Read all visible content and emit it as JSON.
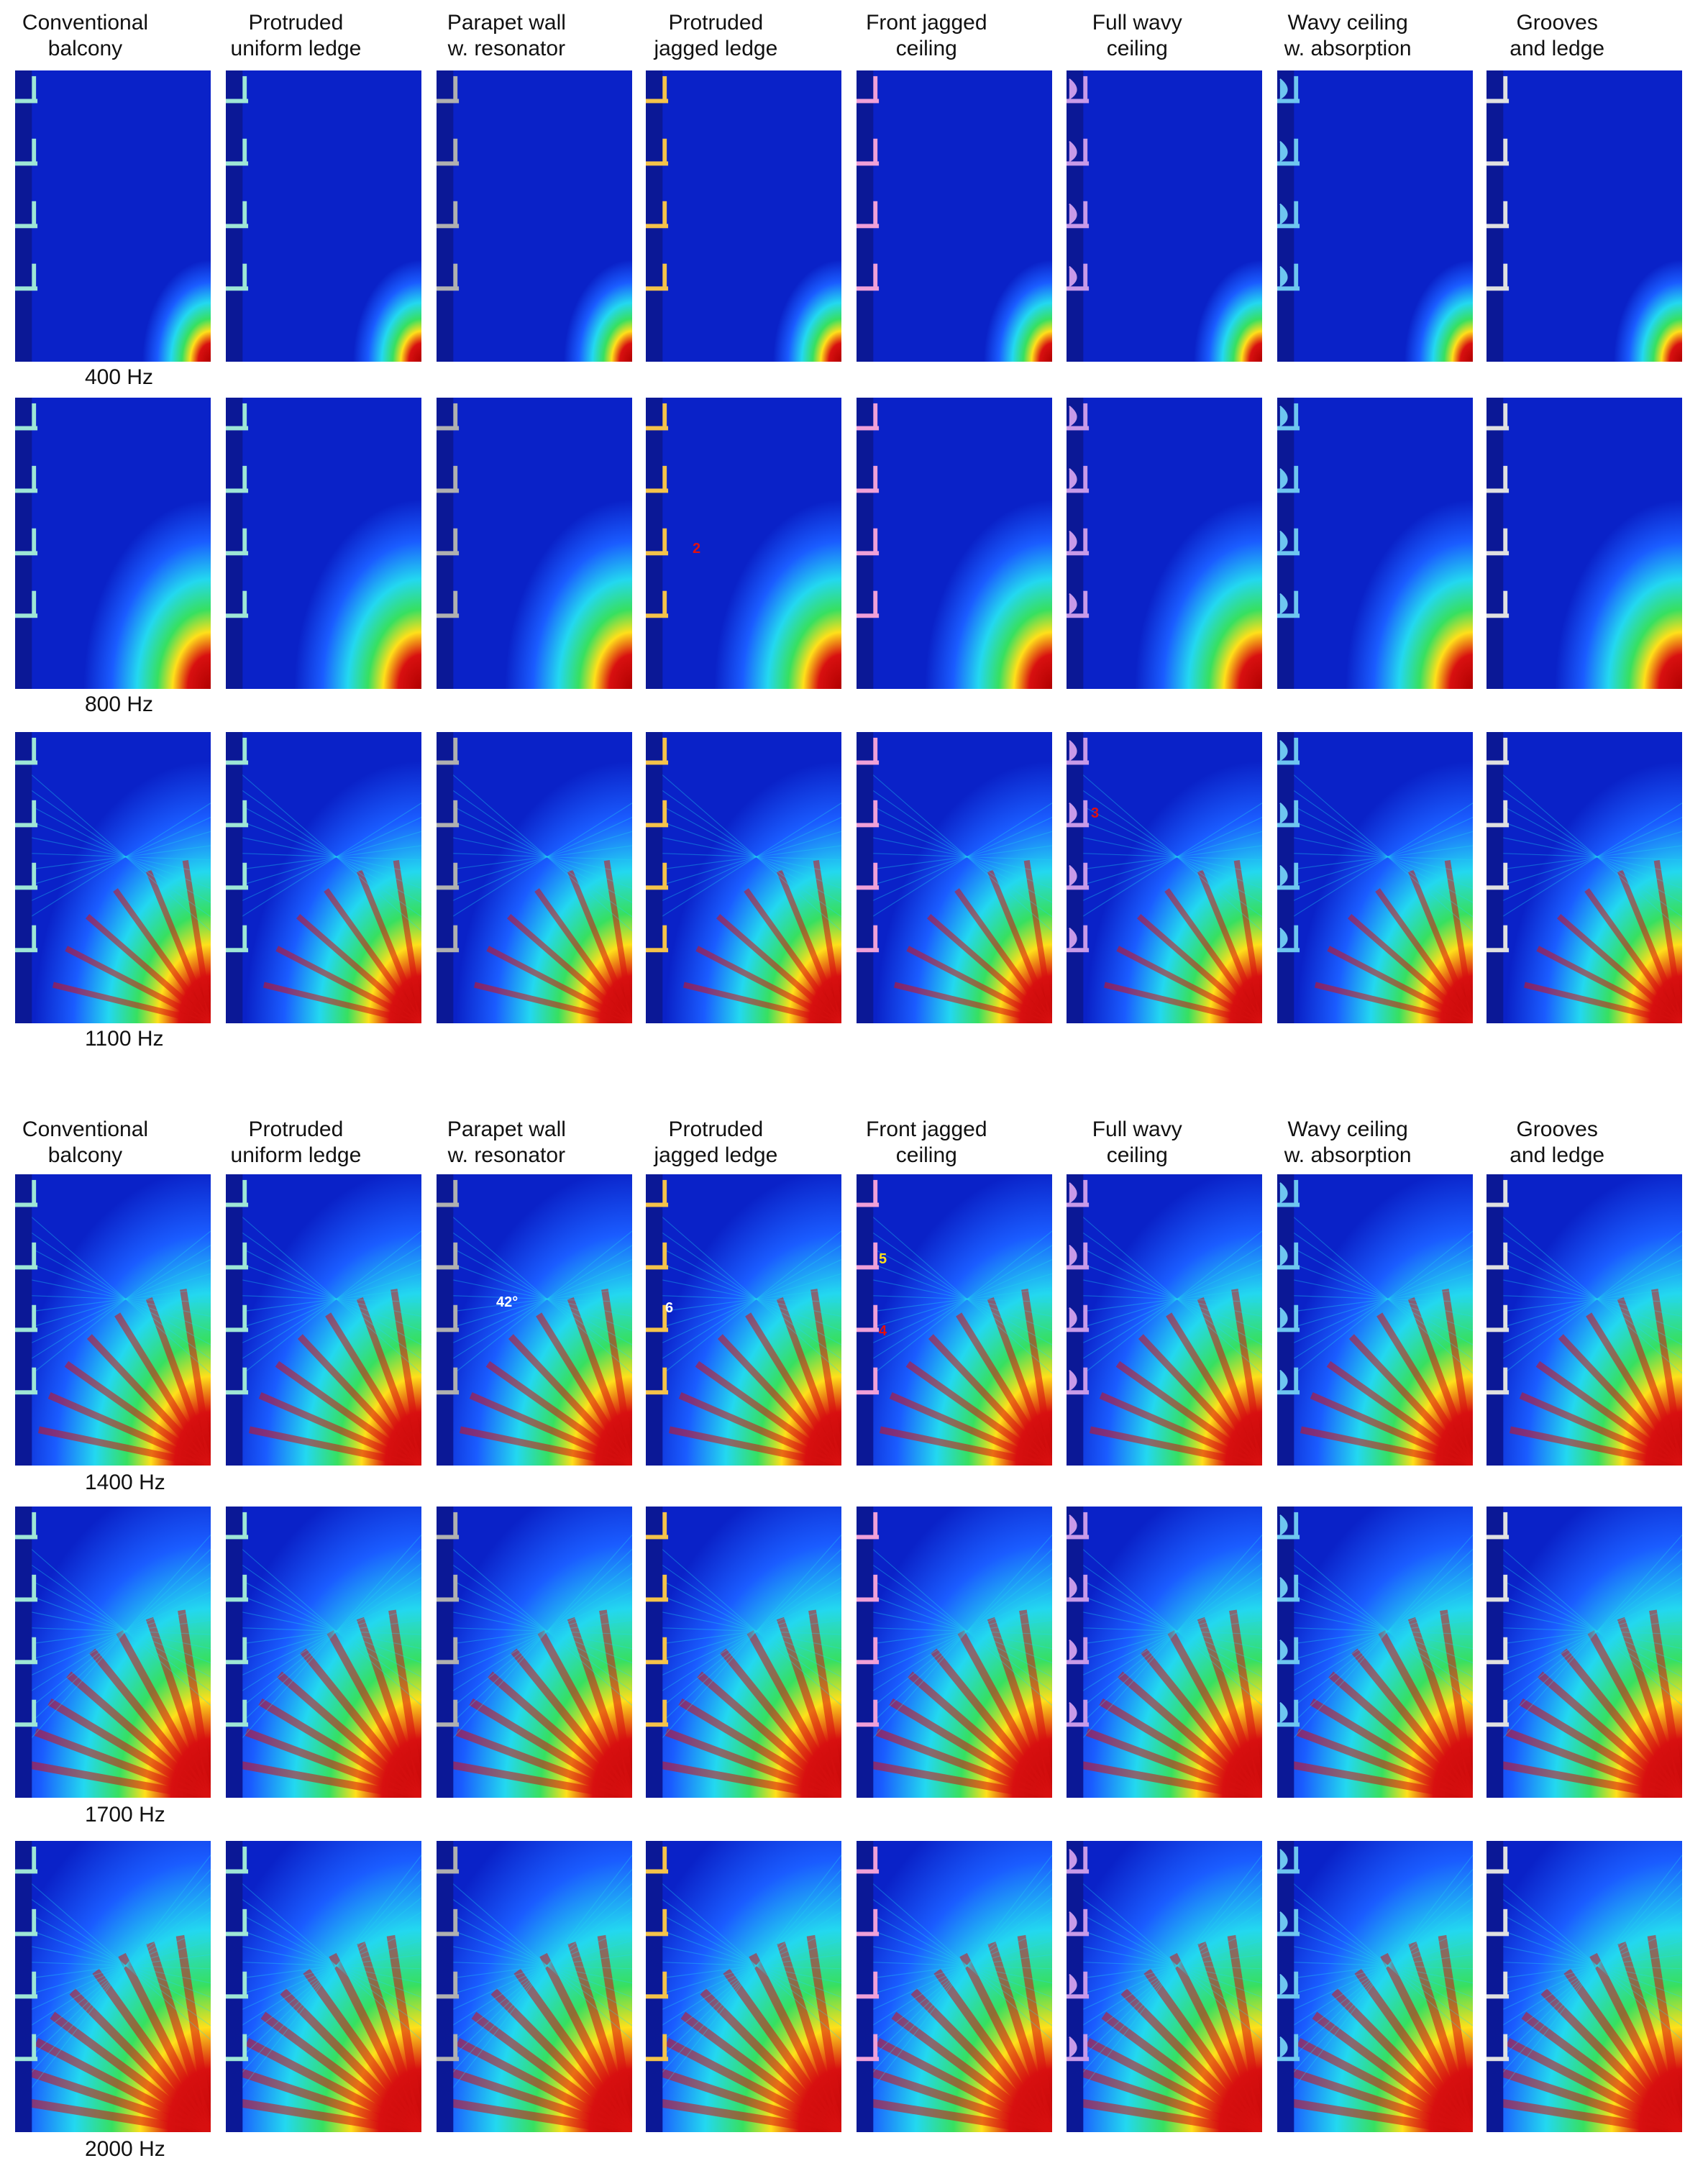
{
  "sections": [
    {
      "id": "low",
      "headers": [
        "Conventional\nbalcony",
        "Protruded\nuniform ledge",
        "Parapet wall\nw. resonator",
        "Protruded\njagged ledge",
        "Front jagged\nceiling",
        "Full wavy\nceiling",
        "Wavy ceiling\nw. absorption",
        "Grooves\nand ledge"
      ],
      "rows": [
        {
          "freq": "400 Hz",
          "intensity": 0.15
        },
        {
          "freq": "800 Hz",
          "intensity": 0.45
        },
        {
          "freq": "1100 Hz",
          "intensity": 0.7
        }
      ]
    },
    {
      "id": "high",
      "headers": [
        "Conventional\nbalcony",
        "Protruded\nuniform ledge",
        "Parapet wall\nw. resonator",
        "Protruded\njagged ledge",
        "Front jagged\nceiling",
        "Full wavy\nceiling",
        "Wavy ceiling\nw. absorption",
        "Grooves\nand ledge"
      ],
      "rows": [
        {
          "freq": "1400 Hz",
          "intensity": 0.82
        },
        {
          "freq": "1700 Hz",
          "intensity": 0.92
        },
        {
          "freq": "2000 Hz",
          "intensity": 1.0
        }
      ]
    }
  ],
  "annotations": {
    "marker_2": "2",
    "marker_3": "3",
    "marker_4": "4",
    "marker_5": "5",
    "marker_6": "6",
    "angle": "42°"
  },
  "balcony_colors": [
    "#9ee6d6",
    "#9ee6d6",
    "#b0b0b0",
    "#f5c34a",
    "#f0a0d8",
    "#c89ae8",
    "#6ec6f0",
    "#e0e0e0"
  ],
  "colors": {
    "deep_blue": "#0a22c8",
    "mid_blue": "#1a5cff",
    "cyan": "#23d8f0",
    "green": "#37e060",
    "yellow": "#ffe01a",
    "red": "#d81010",
    "dark_red": "#b00000",
    "wall_blue": "#0b1896"
  }
}
